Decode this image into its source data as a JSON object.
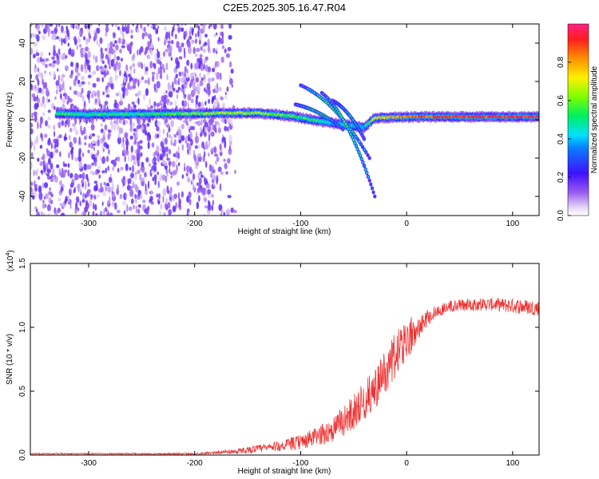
{
  "title": "C2E5.2025.305.16.47.R04",
  "chart_data": [
    {
      "type": "heatmap",
      "xlabel": "Height of straight line (km)",
      "ylabel": "Frequency (Hz)",
      "xlim": [
        -355,
        125
      ],
      "ylim": [
        -50,
        50
      ],
      "xticks": [
        -300,
        -200,
        -100,
        0,
        100
      ],
      "yticks": [
        -40,
        -20,
        0,
        20,
        40
      ],
      "colorbar": {
        "label": "Normalized spectral amplitude",
        "range": [
          0,
          1
        ],
        "ticks": [
          "0.0",
          "0.2",
          "0.4",
          "0.6",
          "0.8"
        ]
      },
      "features": {
        "noise_region_km": [
          -355,
          -180
        ],
        "noise_density": 0.28,
        "carrier_band": [
          {
            "x": -330,
            "f": 3.2,
            "amp": 0.55
          },
          {
            "x": -300,
            "f": 2.8,
            "amp": 0.5
          },
          {
            "x": -250,
            "f": 3.0,
            "amp": 0.5
          },
          {
            "x": -200,
            "f": 3.2,
            "amp": 0.6
          },
          {
            "x": -170,
            "f": 3.5,
            "amp": 0.65
          },
          {
            "x": -140,
            "f": 3.5,
            "amp": 0.65
          },
          {
            "x": -110,
            "f": 2.0,
            "amp": 0.55
          },
          {
            "x": -90,
            "f": 0.0,
            "amp": 0.5
          },
          {
            "x": -60,
            "f": -2.5,
            "amp": 0.45
          },
          {
            "x": -40,
            "f": -4.0,
            "amp": 0.4
          },
          {
            "x": -30,
            "f": 1.0,
            "amp": 0.75
          },
          {
            "x": 0,
            "f": 1.5,
            "amp": 0.85
          },
          {
            "x": 50,
            "f": 1.5,
            "amp": 0.9
          },
          {
            "x": 125,
            "f": 1.5,
            "amp": 0.92
          }
        ],
        "arcs": [
          {
            "x_start": -100,
            "f_start": 18,
            "x_end": -35,
            "f_end": -20
          },
          {
            "x_start": -80,
            "f_start": 14,
            "x_end": -30,
            "f_end": -40
          },
          {
            "x_start": -70,
            "f_start": 10,
            "x_end": -40,
            "f_end": -10
          },
          {
            "x_start": -105,
            "f_start": 8,
            "x_end": -60,
            "f_end": -5
          }
        ]
      }
    },
    {
      "type": "line",
      "xlabel": "Height of straight line (km)",
      "ylabel": "SNR (10 * v/v)",
      "y_scale_note": "(x10",
      "y_scale_exp": "4",
      "xlim": [
        -355,
        125
      ],
      "ylim": [
        0,
        1.5
      ],
      "xticks": [
        -300,
        -200,
        -100,
        0,
        100
      ],
      "yticks": [
        "0.0",
        "0.5",
        "1.0",
        "1.5"
      ],
      "color": "#ee3333",
      "series": [
        {
          "name": "SNR",
          "x": [
            -355,
            -300,
            -250,
            -200,
            -180,
            -160,
            -140,
            -120,
            -100,
            -90,
            -80,
            -70,
            -60,
            -50,
            -40,
            -30,
            -20,
            -10,
            0,
            10,
            20,
            30,
            40,
            60,
            80,
            100,
            125
          ],
          "y": [
            0.01,
            0.01,
            0.01,
            0.01,
            0.02,
            0.03,
            0.05,
            0.07,
            0.1,
            0.13,
            0.16,
            0.2,
            0.26,
            0.34,
            0.42,
            0.52,
            0.65,
            0.78,
            0.9,
            1.0,
            1.08,
            1.13,
            1.16,
            1.18,
            1.18,
            1.17,
            1.15
          ],
          "noise": [
            0.005,
            0.005,
            0.006,
            0.008,
            0.01,
            0.02,
            0.03,
            0.04,
            0.06,
            0.07,
            0.08,
            0.1,
            0.12,
            0.14,
            0.15,
            0.16,
            0.18,
            0.2,
            0.18,
            0.1,
            0.07,
            0.05,
            0.05,
            0.05,
            0.05,
            0.06,
            0.06
          ]
        }
      ]
    }
  ]
}
